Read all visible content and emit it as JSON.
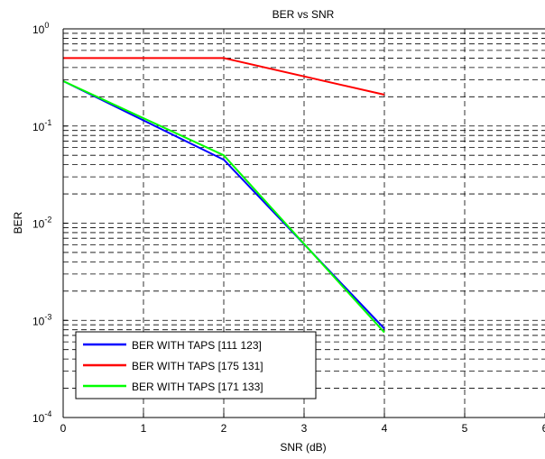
{
  "chart_data": {
    "type": "line",
    "title": "BER vs SNR",
    "xlabel": "SNR (dB)",
    "ylabel": "BER",
    "xlim": [
      0,
      6
    ],
    "ylim": [
      0.0001,
      1
    ],
    "y_scale": "log",
    "grid": true,
    "legend_position": "bottom-left",
    "x_ticks": [
      "0",
      "1",
      "2",
      "3",
      "4",
      "5",
      "6"
    ],
    "y_ticks": [
      {
        "base": "10",
        "exp": "0"
      },
      {
        "base": "10",
        "exp": "-1"
      },
      {
        "base": "10",
        "exp": "-2"
      },
      {
        "base": "10",
        "exp": "-3"
      },
      {
        "base": "10",
        "exp": "-4"
      }
    ],
    "series": [
      {
        "name": "BER WITH TAPS [111 123]",
        "color": "#0000ff",
        "x": [
          0,
          2,
          4
        ],
        "y": [
          0.29,
          0.045,
          0.00082
        ]
      },
      {
        "name": "BER WITH TAPS [175 131]",
        "color": "#ff0000",
        "x": [
          0,
          2,
          4
        ],
        "y": [
          0.5,
          0.5,
          0.21
        ]
      },
      {
        "name": "BER WITH TAPS [171 133]",
        "color": "#00ff00",
        "x": [
          0,
          2,
          4
        ],
        "y": [
          0.29,
          0.05,
          0.00075
        ]
      }
    ]
  }
}
